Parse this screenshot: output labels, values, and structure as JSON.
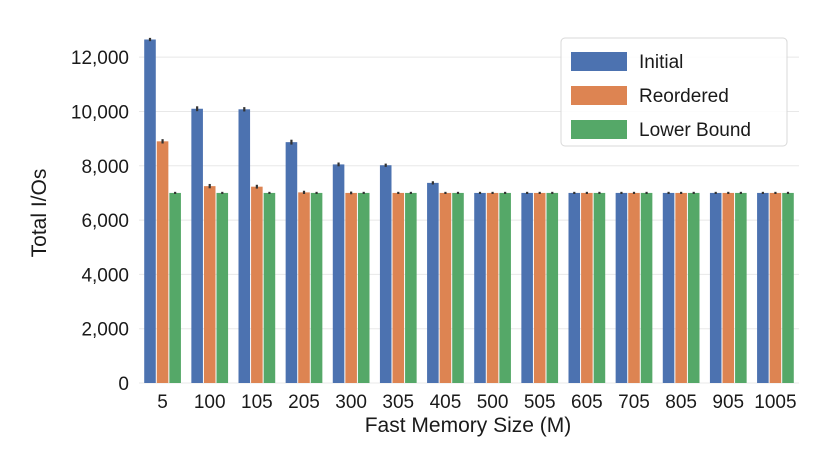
{
  "chart_data": {
    "type": "bar",
    "xlabel": "Fast Memory Size (M)",
    "ylabel": "Total I/Os",
    "ylim": [
      0,
      13000
    ],
    "yticks": [
      0,
      2000,
      4000,
      6000,
      8000,
      10000,
      12000
    ],
    "ytick_labels": [
      "0",
      "2,000",
      "4,000",
      "6,000",
      "8,000",
      "10,000",
      "12,000"
    ],
    "grid": "horizontal",
    "legend_position": "top-right",
    "categories": [
      "5",
      "100",
      "105",
      "205",
      "300",
      "305",
      "405",
      "500",
      "505",
      "605",
      "705",
      "805",
      "905",
      "1005"
    ],
    "series": [
      {
        "name": "Initial",
        "color": "#4C72B0",
        "values": [
          12650,
          10100,
          10080,
          8870,
          8050,
          8020,
          7370,
          7000,
          7000,
          7000,
          7000,
          7000,
          7000,
          7000
        ],
        "error": [
          60,
          90,
          80,
          90,
          70,
          60,
          60,
          40,
          40,
          40,
          40,
          40,
          40,
          40
        ]
      },
      {
        "name": "Reordered",
        "color": "#DD8452",
        "values": [
          8900,
          7250,
          7230,
          7020,
          7000,
          7000,
          7000,
          7000,
          7000,
          7000,
          7000,
          7000,
          7000,
          7000
        ],
        "error": [
          80,
          80,
          70,
          60,
          50,
          40,
          40,
          40,
          40,
          40,
          40,
          40,
          40,
          40
        ]
      },
      {
        "name": "Lower Bound",
        "color": "#55A868",
        "values": [
          7000,
          7000,
          7000,
          7000,
          7000,
          7000,
          7000,
          7000,
          7000,
          7000,
          7000,
          7000,
          7000,
          7000
        ],
        "error": [
          40,
          40,
          40,
          40,
          40,
          40,
          40,
          40,
          40,
          40,
          40,
          40,
          40,
          40
        ]
      }
    ]
  }
}
